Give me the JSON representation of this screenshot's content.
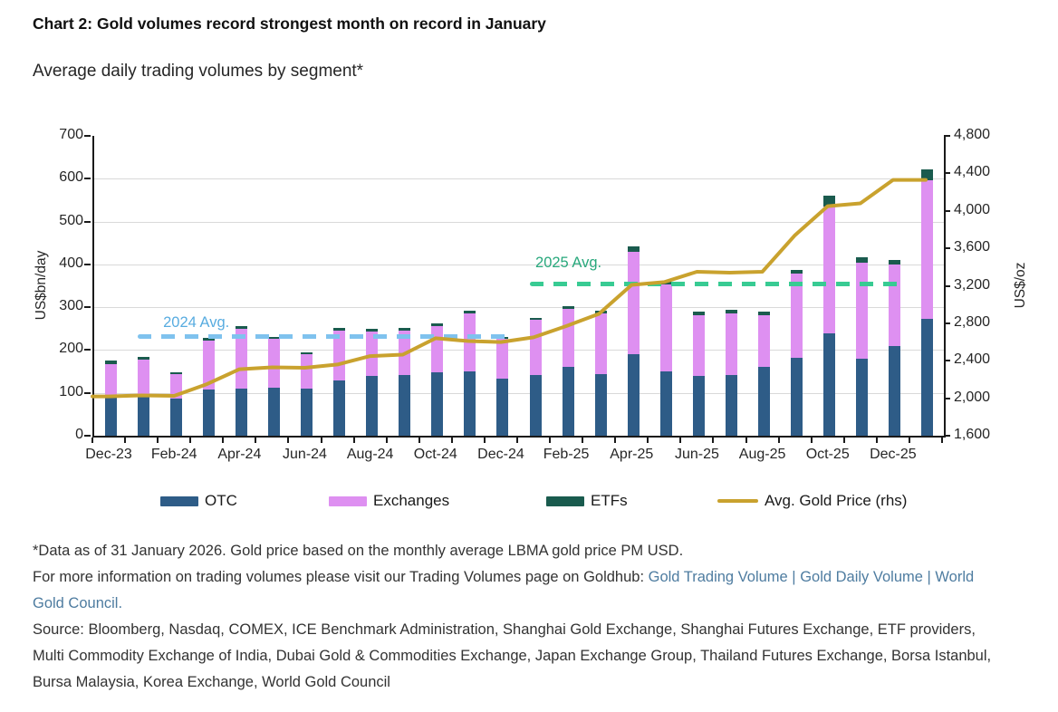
{
  "header": {
    "title": "Chart 2: Gold volumes record strongest month on record in January",
    "subtitle": "Average daily trading volumes by segment*"
  },
  "chart_data": {
    "type": "bar",
    "subtype": "stacked-bar-with-line",
    "categories": [
      "Dec-23",
      "Jan-24",
      "Feb-24",
      "Mar-24",
      "Apr-24",
      "May-24",
      "Jun-24",
      "Jul-24",
      "Aug-24",
      "Sep-24",
      "Oct-24",
      "Nov-24",
      "Dec-24",
      "Jan-25",
      "Feb-25",
      "Mar-25",
      "Apr-25",
      "May-25",
      "Jun-25",
      "Jul-25",
      "Aug-25",
      "Sep-25",
      "Oct-25",
      "Nov-25",
      "Dec-25",
      "Jan-26"
    ],
    "x_label_indices": [
      0,
      2,
      4,
      6,
      8,
      10,
      12,
      14,
      16,
      18,
      20,
      22,
      24
    ],
    "series": [
      {
        "name": "OTC",
        "color": "#2e5c87",
        "values": [
          90,
          92,
          86,
          107,
          111,
          112,
          110,
          128,
          139,
          142,
          149,
          151,
          134,
          142,
          160,
          144,
          191,
          150,
          140,
          142,
          160,
          181,
          240,
          180,
          210,
          272
        ]
      },
      {
        "name": "Exchanges",
        "color": "#de90f1",
        "values": [
          78,
          86,
          57,
          116,
          139,
          114,
          81,
          118,
          104,
          104,
          107,
          134,
          92,
          128,
          136,
          142,
          238,
          203,
          142,
          144,
          122,
          197,
          295,
          224,
          190,
          325
        ]
      },
      {
        "name": "ETFs",
        "color": "#1a5b4e",
        "values": [
          8,
          7,
          5,
          5,
          6,
          5,
          4,
          5,
          6,
          5,
          6,
          6,
          5,
          5,
          6,
          5,
          12,
          6,
          7,
          7,
          7,
          10,
          25,
          12,
          10,
          25
        ]
      }
    ],
    "line_series": {
      "name": "Avg. Gold Price (rhs)",
      "color": "#c9a22e",
      "axis": "right",
      "values": [
        2020,
        2030,
        2025,
        2150,
        2310,
        2330,
        2325,
        2360,
        2450,
        2465,
        2640,
        2610,
        2600,
        2650,
        2770,
        2900,
        3210,
        3240,
        3350,
        3340,
        3350,
        3740,
        4050,
        4080,
        4330,
        4330
      ]
    },
    "left_axis": {
      "label": "US$bn/day",
      "min": 0,
      "max": 700,
      "step": 100
    },
    "right_axis": {
      "label": "US$/oz",
      "min": 1600,
      "max": 4800,
      "step": 400
    },
    "annotations": [
      {
        "label": "2024 Avg.",
        "value": 233,
        "start_index": 1,
        "end_index": 12,
        "line_color": "#7fc2ee",
        "text_color": "#58ace0"
      },
      {
        "label": "2025 Avg.",
        "value": 355,
        "start_index": 13,
        "end_index": 24,
        "line_color": "#38cb93",
        "text_color": "#28a87c"
      }
    ],
    "grid": true,
    "legend_position": "bottom",
    "title": "Chart 2: Gold volumes record strongest month on record in January",
    "xlabel": "",
    "ylabel": "US$bn/day",
    "ylabel_right": "US$/oz",
    "ylim": [
      0,
      700
    ],
    "ylim_right": [
      1600,
      4800
    ]
  },
  "footnotes": {
    "data_note": "*Data as of 31 January 2026. Gold price based on the monthly average LBMA gold price PM USD.",
    "info_prefix": "For more information on trading volumes please visit our Trading Volumes page on Goldhub: ",
    "links": [
      {
        "label": "Gold Trading Volume"
      },
      {
        "label": "Gold Daily Volume"
      },
      {
        "label": "World Gold Council."
      }
    ],
    "link_separator": " | ",
    "link_color": "#4e7ca0",
    "source": "Source: Bloomberg, Nasdaq, COMEX, ICE Benchmark Administration, Shanghai Gold Exchange, Shanghai Futures Exchange, ETF providers, Multi Commodity Exchange of India, Dubai Gold & Commodities Exchange, Japan Exchange Group, Thailand Futures Exchange, Borsa Istanbul, Bursa Malaysia, Korea Exchange, World Gold Council"
  }
}
